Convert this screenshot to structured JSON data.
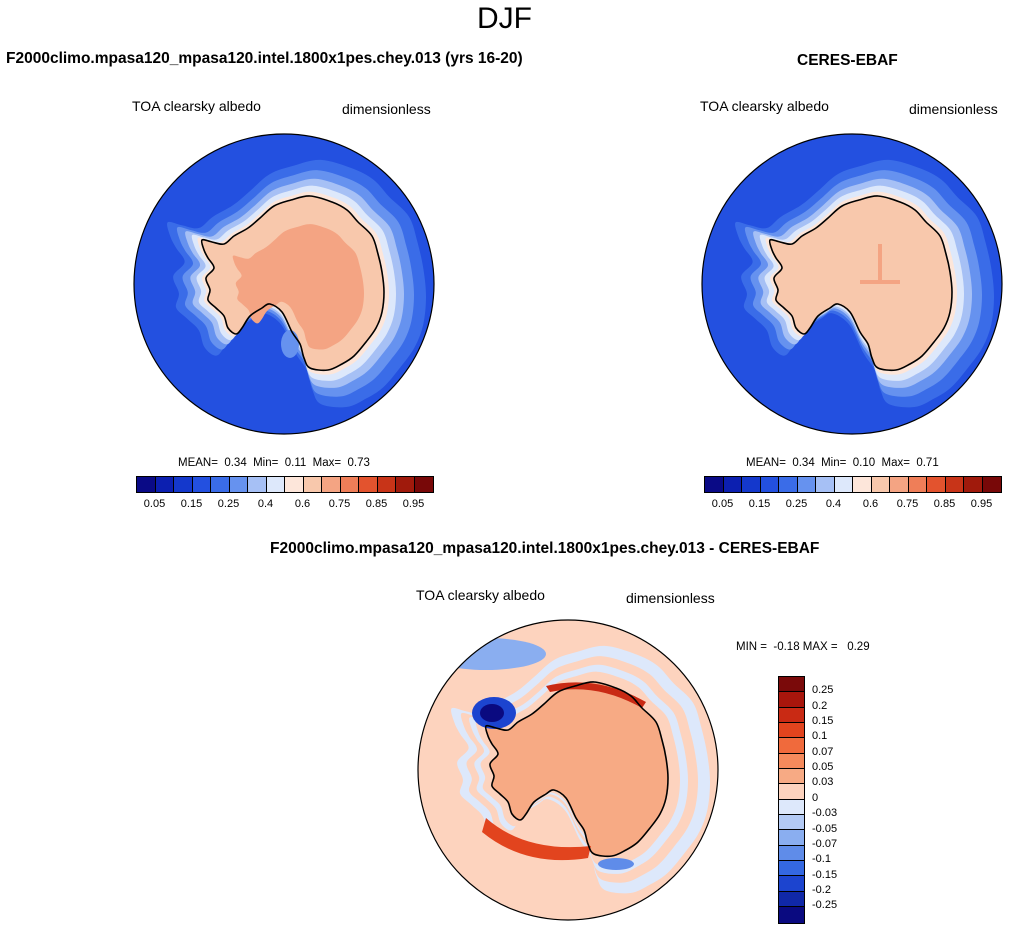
{
  "season": "DJF",
  "panels": {
    "model": {
      "title": "F2000climo.mpasa120_mpasa120.intel.1800x1pes.chey.013 (yrs 16-20)",
      "variable": "TOA clearsky albedo",
      "units": "dimensionless",
      "stats": "MEAN=  0.34  Min=  0.11  Max=  0.73"
    },
    "obs": {
      "title": "CERES-EBAF",
      "variable": "TOA clearsky albedo",
      "units": "dimensionless",
      "stats": "MEAN=  0.34  Min=  0.10  Max=  0.71"
    },
    "diff": {
      "title": "F2000climo.mpasa120_mpasa120.intel.1800x1pes.chey.013 - CERES-EBAF",
      "variable": "TOA clearsky albedo",
      "units": "dimensionless",
      "stats": "MIN =  -0.18 MAX =   0.29"
    }
  },
  "chart_data": [
    {
      "type": "heatmap",
      "title": "F2000climo.mpasa120_mpasa120.intel.1800x1pes.chey.013 (yrs 16-20)",
      "projection": "south-polar-stereographic",
      "mean": 0.34,
      "min": 0.11,
      "max": 0.73,
      "colorbar_levels": [
        0.05,
        0.1,
        0.15,
        0.2,
        0.25,
        0.3,
        0.4,
        0.5,
        0.6,
        0.7,
        0.75,
        0.8,
        0.85,
        0.9,
        0.95
      ],
      "colorbar_tick_labels": [
        "0.05",
        "0.15",
        "0.25",
        "0.4",
        "0.6",
        "0.75",
        "0.85",
        "0.95"
      ],
      "colors": [
        "#0a0a86",
        "#0c1fb0",
        "#1438cc",
        "#2350e0",
        "#3a6ce8",
        "#6692ef",
        "#a6c0f5",
        "#dde8fb",
        "#fde6da",
        "#f8c8ac",
        "#f4a483",
        "#ef7e58",
        "#e3532e",
        "#c83418",
        "#a01a0c",
        "#780808"
      ]
    },
    {
      "type": "heatmap",
      "title": "CERES-EBAF",
      "projection": "south-polar-stereographic",
      "mean": 0.34,
      "min": 0.1,
      "max": 0.71,
      "colorbar_levels": [
        0.05,
        0.1,
        0.15,
        0.2,
        0.25,
        0.3,
        0.4,
        0.5,
        0.6,
        0.7,
        0.75,
        0.8,
        0.85,
        0.9,
        0.95
      ],
      "colorbar_tick_labels": [
        "0.05",
        "0.15",
        "0.25",
        "0.4",
        "0.6",
        "0.75",
        "0.85",
        "0.95"
      ]
    },
    {
      "type": "heatmap",
      "title": "F2000climo.mpasa120_mpasa120.intel.1800x1pes.chey.013 - CERES-EBAF",
      "projection": "south-polar-stereographic",
      "min": -0.18,
      "max": 0.29,
      "colorbar_levels": [
        0.25,
        0.2,
        0.15,
        0.1,
        0.07,
        0.05,
        0.03,
        0,
        -0.03,
        -0.05,
        -0.07,
        -0.1,
        -0.15,
        -0.2,
        -0.25
      ],
      "colorbar_tick_labels": [
        "0.25",
        "0.2",
        "0.15",
        "0.1",
        "0.07",
        "0.05",
        "0.03",
        "0",
        "-0.03",
        "-0.05",
        "-0.07",
        "-0.1",
        "-0.15",
        "-0.2",
        "-0.25"
      ],
      "colors": [
        "#7a0a0a",
        "#a8160c",
        "#c92a14",
        "#e2441e",
        "#f06a3c",
        "#f58a5c",
        "#f7aa84",
        "#fdd3be",
        "#dde8fb",
        "#b3caf5",
        "#8aaef0",
        "#5f8ce9",
        "#3468e2",
        "#1c44cf",
        "#1028a8",
        "#0a0a80"
      ]
    }
  ]
}
